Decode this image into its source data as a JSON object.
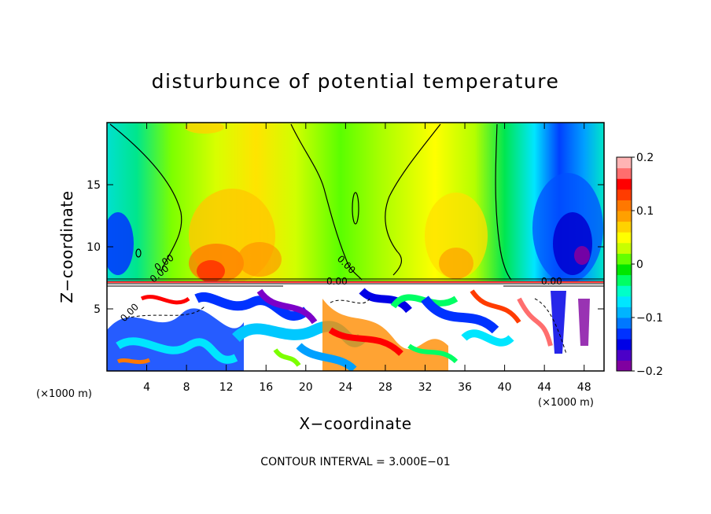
{
  "chart_data": {
    "type": "heatmap",
    "title": "disturbunce of potential temperature",
    "xlabel": "X−coordinate",
    "ylabel": "Z−coordinate",
    "x_unit_left": "(×1000 m)",
    "x_unit_right": "(×1000 m)",
    "xlim": [
      0,
      50
    ],
    "ylim": [
      0,
      20
    ],
    "x_ticks": [
      "4",
      "8",
      "12",
      "16",
      "20",
      "24",
      "28",
      "32",
      "36",
      "40",
      "44",
      "48"
    ],
    "y_ticks": [
      "5",
      "10",
      "15"
    ],
    "colorbar": {
      "range": [
        -0.2,
        0.2
      ],
      "tick_labels": [
        "0.2",
        "0.1",
        "0",
        "−0.1",
        "−0.2"
      ],
      "colors": [
        "#8000a0",
        "#4b00c8",
        "#0000e6",
        "#0032ff",
        "#0078ff",
        "#00b4ff",
        "#00e6ff",
        "#00ffc8",
        "#00ff64",
        "#00e600",
        "#64ff00",
        "#c8ff00",
        "#ffff00",
        "#ffd200",
        "#ffa000",
        "#ff7800",
        "#ff3c00",
        "#ff0000",
        "#ff6e6e",
        "#ffb4b4"
      ]
    },
    "contour_labels": [
      "0.00",
      "0.00",
      "0.00",
      "0.00",
      "0.00",
      "0.00"
    ],
    "contour_interval_text": "CONTOUR INTERVAL = 3.000E−01"
  }
}
